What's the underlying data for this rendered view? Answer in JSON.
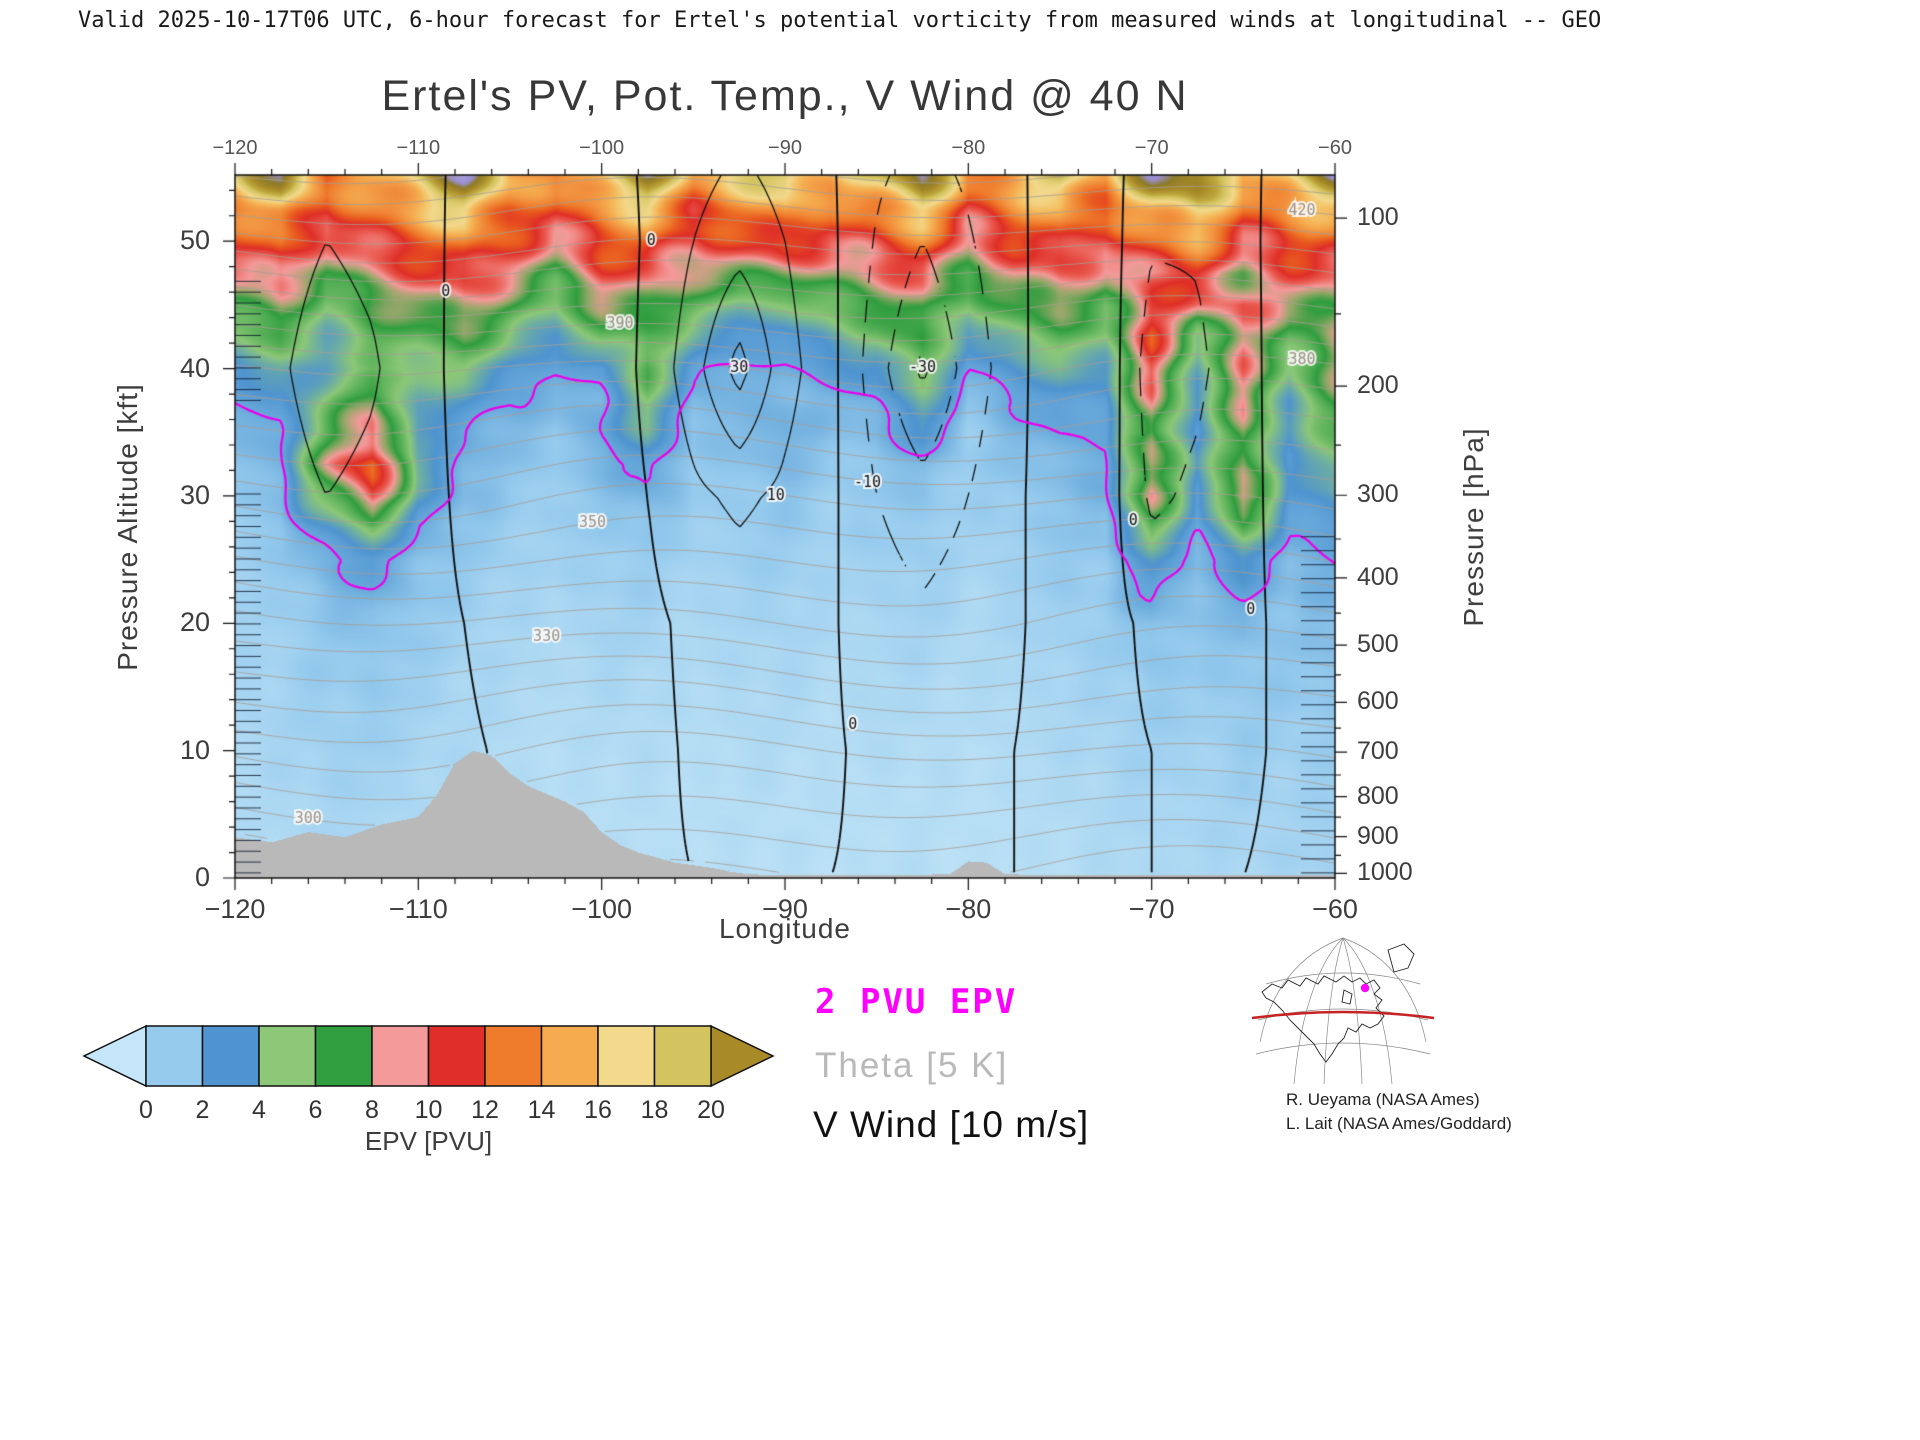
{
  "header": {
    "text": "Valid 2025-10-17T06 UTC, 6-hour forecast for Ertel's potential vorticity from measured winds at longitudinal -- GEO"
  },
  "title": "Ertel's PV, Pot. Temp., V Wind @ 40 N",
  "axes": {
    "x": {
      "label": "Longitude",
      "min": -120,
      "max": -60,
      "major": [
        -120,
        -110,
        -100,
        -90,
        -80,
        -70,
        -60
      ],
      "minor_step": 2
    },
    "y_left": {
      "label": "Pressure Altitude [kft]",
      "min": 0,
      "max": 55.2,
      "major": [
        0,
        10,
        20,
        30,
        40,
        50
      ],
      "minor_step": 2
    },
    "y_right": {
      "label": "Pressure [hPa]",
      "ticks": [
        100,
        200,
        300,
        400,
        500,
        600,
        700,
        800,
        900,
        1000
      ]
    }
  },
  "colorbar": {
    "label": "EPV [PVU]",
    "tick_labels": [
      0,
      2,
      4,
      6,
      8,
      10,
      12,
      14,
      16,
      18,
      20
    ],
    "segment_colors": [
      "#96cbee",
      "#4f94d0",
      "#8cc878",
      "#2f9e3e",
      "#f49a9a",
      "#df2f28",
      "#ef7c2c",
      "#f5ab4e",
      "#f2d98c",
      "#d3c45f"
    ],
    "arrow_left_color": "#c4e6f8",
    "arrow_right_color": "#a88a28"
  },
  "legend": [
    {
      "text": "2 PVU EPV",
      "color": "#ff00ff"
    },
    {
      "text": "Theta [5 K]",
      "color": "#b9b9b9"
    },
    {
      "text": "V Wind [10 m/s]",
      "color": "#111111"
    }
  ],
  "credits": [
    "R. Ueyama (NASA Ames)",
    "L. Lait (NASA Ames/Goddard)"
  ],
  "map_inset": {
    "latitude_line_color": "#c62222",
    "marker_color": "#ff00ff"
  },
  "chart_data": {
    "type": "heatmap",
    "title": "Ertel's PV, Pot. Temp., V Wind @ 40 N",
    "xlabel": "Longitude",
    "ylabel_left": "Pressure Altitude [kft]",
    "ylabel_right": "Pressure [hPa]",
    "xlim": [
      -120,
      -60
    ],
    "ylim_kft": [
      0,
      55.2
    ],
    "terrain_color": "#b9b9b9",
    "pv_contour_level": 2,
    "pv_contour_color": "#ea00ea",
    "colormap_anchors": [
      [
        0,
        "#c4e6f8"
      ],
      [
        1,
        "#96cbee"
      ],
      [
        2,
        "#68a9db"
      ],
      [
        3,
        "#4f94d0"
      ],
      [
        5,
        "#8cc878"
      ],
      [
        7,
        "#2f9e3e"
      ],
      [
        8,
        "#98a86a"
      ],
      [
        9,
        "#f49a9a"
      ],
      [
        10,
        "#ea5a50"
      ],
      [
        11,
        "#df2f28"
      ],
      [
        12,
        "#e9571f"
      ],
      [
        13,
        "#ef7c2c"
      ],
      [
        14,
        "#f29440"
      ],
      [
        15,
        "#f5ab4e"
      ],
      [
        16,
        "#f4c468"
      ],
      [
        17,
        "#f2d98c"
      ],
      [
        18,
        "#e3cf75"
      ],
      [
        19,
        "#d3c45f"
      ],
      [
        20,
        "#c0a93f"
      ],
      [
        22,
        "#a88a28"
      ],
      [
        24,
        "#8d7b2a"
      ],
      [
        26,
        "#9b8fcf"
      ],
      [
        30,
        "#b0a6dd"
      ]
    ],
    "pv": {
      "units": "PVU",
      "lons": [
        -120,
        -117.5,
        -115,
        -112.5,
        -110,
        -107.5,
        -105,
        -102.5,
        -100,
        -97.5,
        -95,
        -92.5,
        -90,
        -87.5,
        -85,
        -82.5,
        -80,
        -77.5,
        -75,
        -72.5,
        -70,
        -67.5,
        -65,
        -62.5,
        -60
      ],
      "alts_kft": [
        0,
        5,
        10,
        15,
        20,
        25,
        27.5,
        30,
        32.5,
        35,
        37.5,
        40,
        42.5,
        45,
        47.5,
        50,
        52.5,
        55.8
      ],
      "values": [
        [
          0.4,
          0.4,
          0.5,
          0.5,
          0.4,
          0.3,
          0.3,
          0.2,
          0.3,
          0.3,
          0.2,
          0.3,
          0.3,
          0.2,
          0.3,
          0.3,
          0.2,
          0.3,
          0.3,
          0.4,
          0.5,
          0.5,
          0.6,
          0.6,
          0.7
        ],
        [
          0.4,
          0.5,
          0.6,
          0.6,
          0.5,
          0.4,
          0.3,
          0.3,
          0.3,
          0.3,
          0.3,
          0.3,
          0.3,
          0.3,
          0.3,
          0.3,
          0.3,
          0.3,
          0.4,
          0.5,
          0.6,
          0.6,
          0.7,
          0.7,
          0.8
        ],
        [
          0.5,
          0.6,
          0.8,
          0.8,
          0.6,
          0.5,
          0.4,
          0.3,
          0.4,
          0.4,
          0.3,
          0.4,
          0.4,
          0.3,
          0.4,
          0.4,
          0.3,
          0.4,
          0.5,
          0.6,
          0.8,
          0.7,
          0.9,
          0.8,
          1.0
        ],
        [
          0.6,
          0.7,
          0.9,
          1.0,
          0.8,
          0.6,
          0.5,
          0.4,
          0.5,
          0.5,
          0.4,
          0.5,
          0.5,
          0.4,
          0.5,
          0.5,
          0.4,
          0.5,
          0.6,
          0.7,
          1.0,
          0.9,
          1.1,
          1.0,
          1.2
        ],
        [
          0.7,
          0.8,
          1.1,
          1.3,
          1.0,
          0.8,
          0.6,
          0.5,
          0.7,
          0.7,
          0.5,
          0.6,
          0.7,
          0.5,
          0.6,
          0.7,
          0.5,
          0.6,
          0.8,
          0.9,
          1.4,
          1.1,
          1.5,
          1.2,
          1.4
        ],
        [
          0.8,
          1.0,
          1.8,
          2.5,
          1.4,
          1.0,
          0.8,
          0.7,
          0.9,
          0.9,
          0.7,
          0.8,
          0.9,
          0.7,
          0.8,
          0.9,
          0.6,
          0.8,
          1.0,
          1.1,
          3.0,
          1.5,
          3.0,
          1.6,
          2.0
        ],
        [
          0.9,
          1.2,
          3.0,
          5.0,
          2.0,
          1.2,
          0.9,
          0.8,
          1.0,
          1.2,
          0.8,
          0.9,
          1.0,
          0.8,
          0.9,
          1.0,
          0.7,
          0.9,
          1.1,
          1.3,
          6.0,
          2.0,
          6.0,
          2.0,
          2.5
        ],
        [
          1.0,
          1.5,
          6.0,
          11,
          3.5,
          1.5,
          1.0,
          0.9,
          1.2,
          1.8,
          0.9,
          1.0,
          1.2,
          0.9,
          1.0,
          1.2,
          0.8,
          1.0,
          1.3,
          1.6,
          9.0,
          2.5,
          10,
          2.5,
          3.5
        ],
        [
          1.2,
          1.8,
          8.0,
          13,
          4.0,
          1.8,
          1.2,
          1.0,
          1.5,
          2.5,
          1.0,
          1.2,
          1.5,
          1.0,
          1.2,
          1.5,
          0.9,
          1.2,
          1.5,
          1.8,
          9.0,
          3.0,
          8.0,
          2.5,
          5.0
        ],
        [
          1.5,
          2.0,
          6.0,
          10,
          3.0,
          2.0,
          1.5,
          1.2,
          2.0,
          4.0,
          1.2,
          1.5,
          2.0,
          1.2,
          1.5,
          3.0,
          1.0,
          1.5,
          2.0,
          2.0,
          8.0,
          2.5,
          8.0,
          3.0,
          6.0
        ],
        [
          2.0,
          2.5,
          5.0,
          8.0,
          4.0,
          3.0,
          2.0,
          1.5,
          1.8,
          5.0,
          1.5,
          1.5,
          1.6,
          1.5,
          2.0,
          4.0,
          1.2,
          2.0,
          2.5,
          2.5,
          9.0,
          3.0,
          9.0,
          3.5,
          7.0
        ],
        [
          3.0,
          4.0,
          3.5,
          5.0,
          5.0,
          5.0,
          3.0,
          2.0,
          2.5,
          6.0,
          2.5,
          1.8,
          1.8,
          2.5,
          3.0,
          6.0,
          2.0,
          3.0,
          4.0,
          3.5,
          10,
          4.0,
          9.0,
          5.0,
          8.0
        ],
        [
          5.0,
          6.0,
          4.0,
          6.0,
          6.0,
          7.0,
          5.0,
          3.0,
          6.0,
          6.0,
          4.0,
          2.5,
          2.5,
          4.0,
          5.0,
          7.0,
          3.0,
          5.0,
          6.0,
          5.0,
          11,
          5.0,
          9.0,
          6.0,
          8.0
        ],
        [
          7.0,
          8.0,
          5.0,
          7.0,
          8.0,
          9.0,
          7.0,
          5.0,
          8.0,
          8.0,
          6.0,
          4.5,
          4.5,
          6.0,
          7.0,
          8.0,
          5.0,
          7.0,
          8.0,
          6.0,
          11,
          9.0,
          10,
          8.0,
          8.0
        ],
        [
          9.0,
          10,
          7.0,
          9.0,
          10,
          11,
          9.0,
          7.0,
          10,
          10,
          8.0,
          8.0,
          8.0,
          8.0,
          9.0,
          10,
          7.0,
          9.0,
          10,
          8.0,
          10,
          11,
          8.0,
          10,
          10
        ],
        [
          11,
          13,
          9.0,
          11,
          12,
          14,
          11,
          9.0,
          12,
          13,
          10,
          11,
          12,
          10,
          11,
          13,
          9.0,
          11,
          12,
          10,
          13,
          14,
          10,
          12,
          12
        ],
        [
          13,
          16,
          11,
          13,
          15,
          18,
          13,
          11,
          14,
          16,
          12,
          13,
          15,
          12,
          14,
          17,
          11,
          13,
          15,
          12,
          16,
          18,
          12,
          14,
          15
        ],
        [
          18,
          26,
          14,
          16,
          20,
          27,
          17,
          14,
          19,
          25,
          15,
          18,
          22,
          16,
          20,
          26,
          14,
          17,
          21,
          15,
          26,
          27,
          16,
          19,
          26
        ]
      ]
    },
    "terrain_kft": {
      "lons": [
        -120,
        -118,
        -116,
        -114,
        -112,
        -110,
        -109,
        -108,
        -107,
        -106,
        -105,
        -104,
        -103,
        -102,
        -101,
        -100,
        -99,
        -98,
        -97,
        -96,
        -95,
        -94,
        -93,
        -92,
        -90,
        -85,
        -81,
        -80,
        -79,
        -78,
        -75,
        -70,
        -65,
        -60
      ],
      "heights": [
        3.2,
        2.8,
        3.6,
        3.2,
        4.2,
        4.8,
        6.5,
        9.0,
        10.0,
        9.6,
        8.2,
        7.2,
        6.6,
        6.0,
        5.2,
        3.6,
        2.6,
        2.0,
        1.6,
        1.2,
        1.0,
        0.8,
        0.5,
        0.3,
        0.2,
        0.2,
        0.3,
        1.3,
        1.2,
        0.3,
        0.2,
        0.2,
        0.2,
        0.2
      ]
    },
    "v_wind": {
      "units": "m/s",
      "contour_interval": 10,
      "lons": [
        -120,
        -117.5,
        -115,
        -112.5,
        -110,
        -107.5,
        -105,
        -102.5,
        -100,
        -97.5,
        -95,
        -92.5,
        -90,
        -87.5,
        -85,
        -82.5,
        -80,
        -77.5,
        -75,
        -72.5,
        -70,
        -67.5,
        -65,
        -62.5,
        -60
      ],
      "alts_kft": [
        0,
        10,
        20,
        30,
        40,
        50,
        56
      ],
      "values": [
        [
          2,
          2,
          3,
          3,
          2,
          1,
          0,
          -1,
          -2,
          -1,
          0,
          1,
          1,
          0,
          -1,
          -2,
          -1,
          0,
          1,
          1,
          0,
          -1,
          0,
          1,
          1
        ],
        [
          3,
          3,
          4,
          4,
          3,
          1,
          -1,
          -2,
          -3,
          -2,
          1,
          2,
          2,
          1,
          -2,
          -4,
          -2,
          0,
          2,
          2,
          0,
          -2,
          -1,
          1,
          2
        ],
        [
          4,
          5,
          6,
          5,
          3,
          0,
          -3,
          -4,
          -4,
          -2,
          2,
          4,
          3,
          1,
          -5,
          -8,
          -5,
          -1,
          3,
          3,
          -2,
          -4,
          -2,
          2,
          3
        ],
        [
          5,
          7,
          10,
          8,
          4,
          -2,
          -6,
          -7,
          -5,
          0,
          8,
          12,
          8,
          2,
          -10,
          -16,
          -10,
          -2,
          6,
          5,
          -12,
          -8,
          -3,
          4,
          5
        ],
        [
          6,
          9,
          14,
          11,
          5,
          -4,
          -9,
          -9,
          -6,
          2,
          16,
          34,
          14,
          3,
          -16,
          -32,
          -16,
          -4,
          9,
          7,
          -16,
          -12,
          -4,
          6,
          8
        ],
        [
          5,
          7,
          10,
          8,
          4,
          -3,
          -7,
          -7,
          -5,
          1,
          10,
          16,
          10,
          2,
          -11,
          -20,
          -11,
          -3,
          7,
          5,
          -9,
          -9,
          -3,
          5,
          6
        ],
        [
          4,
          5,
          7,
          6,
          3,
          -2,
          -5,
          -5,
          -3,
          1,
          7,
          11,
          7,
          1,
          -8,
          -13,
          -8,
          -2,
          5,
          4,
          -6,
          -6,
          -2,
          3,
          4
        ]
      ],
      "labels": [
        {
          "value": 0,
          "lon": -108.5,
          "z": 46
        },
        {
          "value": 0,
          "lon": -97.3,
          "z": 50
        },
        {
          "value": 10,
          "lon": -90.5,
          "z": 30
        },
        {
          "value": -10,
          "lon": -85.5,
          "z": 31
        },
        {
          "value": -30,
          "lon": -82.5,
          "z": 40
        },
        {
          "value": 0,
          "lon": -86.3,
          "z": 12
        },
        {
          "value": 0,
          "lon": -71,
          "z": 28
        },
        {
          "value": 0,
          "lon": -64.6,
          "z": 21
        },
        {
          "value": 30,
          "lon": -92.5,
          "z": 40
        }
      ]
    },
    "theta": {
      "units": "K",
      "contour_interval": 5,
      "alts_kft": [
        0,
        10,
        20,
        30,
        40,
        50,
        56
      ],
      "profile": [
        288,
        310,
        334,
        356,
        380,
        412,
        432
      ],
      "lon_wave_amplitude": 2.5,
      "labeled_contours": [
        {
          "value": 300,
          "lon": -116
        },
        {
          "value": 330,
          "lon": -103
        },
        {
          "value": 350,
          "lon": -100.5
        },
        {
          "value": 390,
          "lon": -99
        },
        {
          "value": 380,
          "lon": -61.8
        },
        {
          "value": 420,
          "lon": -61.8
        }
      ]
    }
  }
}
